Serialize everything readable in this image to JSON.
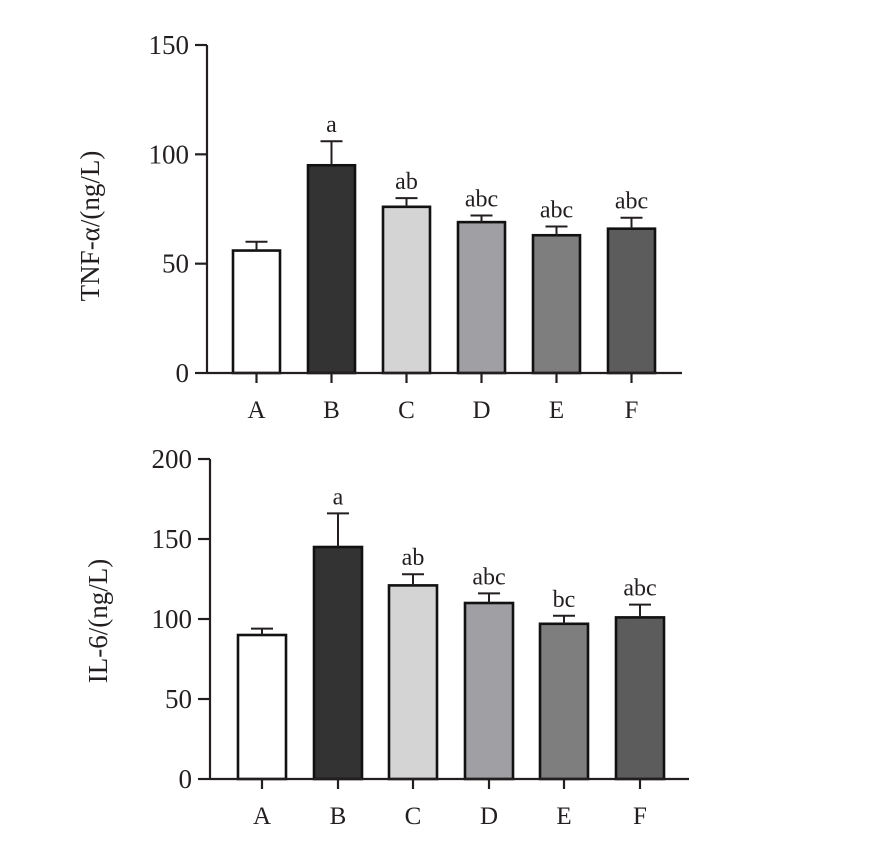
{
  "chart_data": [
    {
      "type": "bar",
      "ylabel": "TNF-α/(ng/L)",
      "xlabel": "",
      "categories": [
        "A",
        "B",
        "C",
        "D",
        "E",
        "F"
      ],
      "values": [
        56,
        95,
        76,
        69,
        63,
        66
      ],
      "errors": [
        4,
        11,
        4,
        3,
        4,
        5
      ],
      "significance": [
        "",
        "a",
        "ab",
        "abc",
        "abc",
        "abc"
      ],
      "bar_colors": [
        "#ffffff",
        "#333333",
        "#d4d4d4",
        "#a0a0a4",
        "#7e7e7e",
        "#5c5c5c"
      ],
      "ylim": [
        0,
        150
      ],
      "yticks": [
        0,
        50,
        100,
        150
      ]
    },
    {
      "type": "bar",
      "ylabel": "IL-6/(ng/L)",
      "xlabel": "",
      "categories": [
        "A",
        "B",
        "C",
        "D",
        "E",
        "F"
      ],
      "values": [
        90,
        145,
        121,
        110,
        97,
        101
      ],
      "errors": [
        4,
        21,
        7,
        6,
        5,
        8
      ],
      "significance": [
        "",
        "a",
        "ab",
        "abc",
        "bc",
        "abc"
      ],
      "bar_colors": [
        "#ffffff",
        "#333333",
        "#d4d4d4",
        "#a0a0a4",
        "#7e7e7e",
        "#5c5c5c"
      ],
      "ylim": [
        0,
        200
      ],
      "yticks": [
        0,
        50,
        100,
        150,
        200
      ]
    }
  ]
}
